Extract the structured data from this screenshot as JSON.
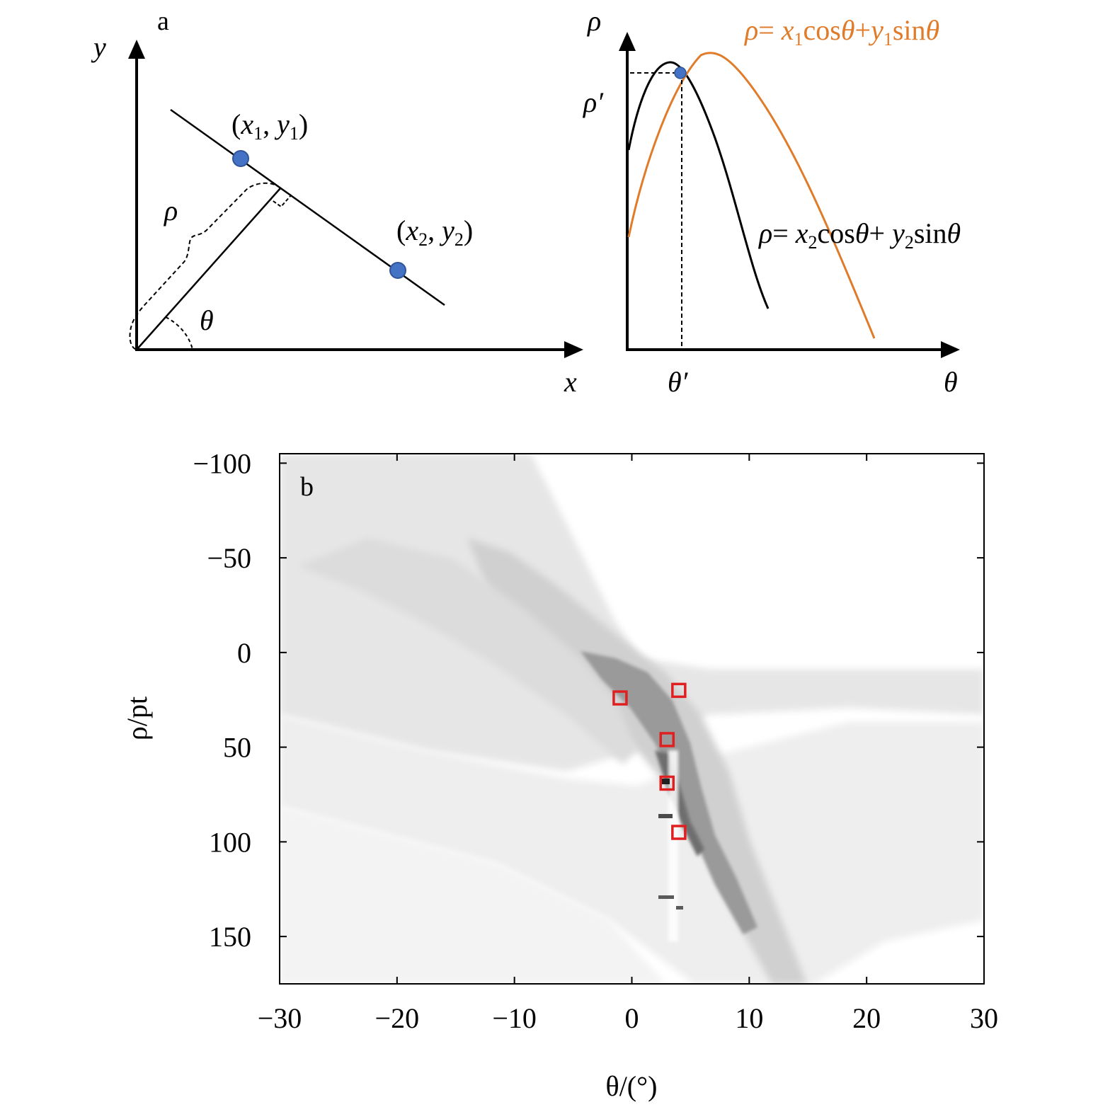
{
  "panel_a": {
    "label": "a",
    "xy_diagram": {
      "y_axis_label": "y",
      "x_axis_label": "x",
      "rho_label": "ρ",
      "theta_label": "θ",
      "point1_label": "(x1, y1)",
      "point2_label": "(x2, y2)",
      "point_color": "#4472c4"
    },
    "hough_diagram": {
      "rho_axis_label": "ρ",
      "theta_axis_label": "θ",
      "rho_prime_label": "ρ′",
      "theta_prime_label": "θ′",
      "curve1_equation": "ρ= x1cosθ+y1sinθ",
      "curve1_color": "#e07b2a",
      "curve2_equation": "ρ= x2cosθ+y2sinθ",
      "curve2_color": "#000000"
    }
  },
  "panel_b": {
    "label": "b"
  },
  "chart_data": {
    "type": "heatmap",
    "colormap": "grayscale (white = low, black = high)",
    "xlabel": "θ/(°)",
    "ylabel": "ρ/pt",
    "xlim": [
      -30,
      30
    ],
    "ylim": [
      175,
      -105
    ],
    "y_axis_inverted": true,
    "x_ticks": [
      -30,
      -20,
      -10,
      0,
      10,
      20,
      30
    ],
    "x_tick_labels": [
      "−30",
      "−20",
      "−10",
      "0",
      "10",
      "20",
      "30"
    ],
    "y_ticks": [
      -100,
      -50,
      0,
      50,
      100,
      150
    ],
    "y_tick_labels": [
      "−100",
      "−50",
      "0",
      "50",
      "100",
      "150"
    ],
    "marker_color": "#e02020",
    "highlighted_peaks": [
      {
        "theta": -1,
        "rho": 24
      },
      {
        "theta": 4,
        "rho": 20
      },
      {
        "theta": 3,
        "rho": 46
      },
      {
        "theta": 3,
        "rho": 69
      },
      {
        "theta": 4,
        "rho": 95
      }
    ]
  }
}
